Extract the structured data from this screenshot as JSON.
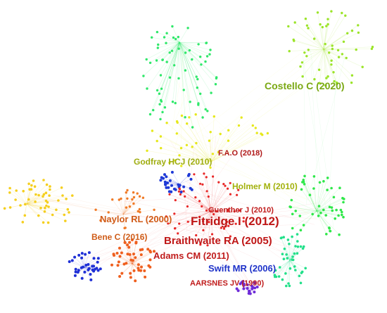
{
  "labels": [
    {
      "id": "costello",
      "text": "Costello C (2020)",
      "color": "#7aa813"
    },
    {
      "id": "fao",
      "text": "F.A.O (2018)",
      "color": "#b01818"
    },
    {
      "id": "godfray",
      "text": "Godfray HCJ (2010)",
      "color": "#9fad10"
    },
    {
      "id": "holmer",
      "text": "Holmer M (2010)",
      "color": "#a2b10b"
    },
    {
      "id": "guenther",
      "text": "Guenther J (2010)",
      "color": "#c01c1c"
    },
    {
      "id": "naylor",
      "text": "Naylor RL (2000)",
      "color": "#d05a16"
    },
    {
      "id": "fitridge",
      "text": "Fitridge I (2012)",
      "color": "#bf1616"
    },
    {
      "id": "bene",
      "text": "Bene C (2016)",
      "color": "#cf5c18"
    },
    {
      "id": "braithwaite",
      "text": "Braithwaite RA (2005)",
      "color": "#bf1616"
    },
    {
      "id": "adams",
      "text": "Adams CM (2011)",
      "color": "#c01c1c"
    },
    {
      "id": "swift",
      "text": "Swift MR (2006)",
      "color": "#1f33c9"
    },
    {
      "id": "aarsnes",
      "text": "AARSNES JV (1990)",
      "color": "#c01c1c"
    }
  ],
  "clusters": [
    {
      "name": "green-top-cluster",
      "color": "#2fe86a"
    },
    {
      "name": "lime-top-right-cluster",
      "color": "#9be428"
    },
    {
      "name": "yellow-center-cluster",
      "color": "#e6e81c"
    },
    {
      "name": "yellow-left-cluster",
      "color": "#f5cf1e"
    },
    {
      "name": "orange-left-cluster",
      "color": "#f07a26"
    },
    {
      "name": "blue-upper-cluster",
      "color": "#1e39d6"
    },
    {
      "name": "red-center-cluster",
      "color": "#e82828"
    },
    {
      "name": "orange-lower-cluster",
      "color": "#ef5f1e"
    },
    {
      "name": "blue-left-cluster",
      "color": "#1e2fd6"
    },
    {
      "name": "green-right-cluster",
      "color": "#2fe84a"
    },
    {
      "name": "teal-lower-cluster",
      "color": "#22e08a"
    },
    {
      "name": "purple-bottom-cluster",
      "color": "#6e2cd8"
    }
  ]
}
